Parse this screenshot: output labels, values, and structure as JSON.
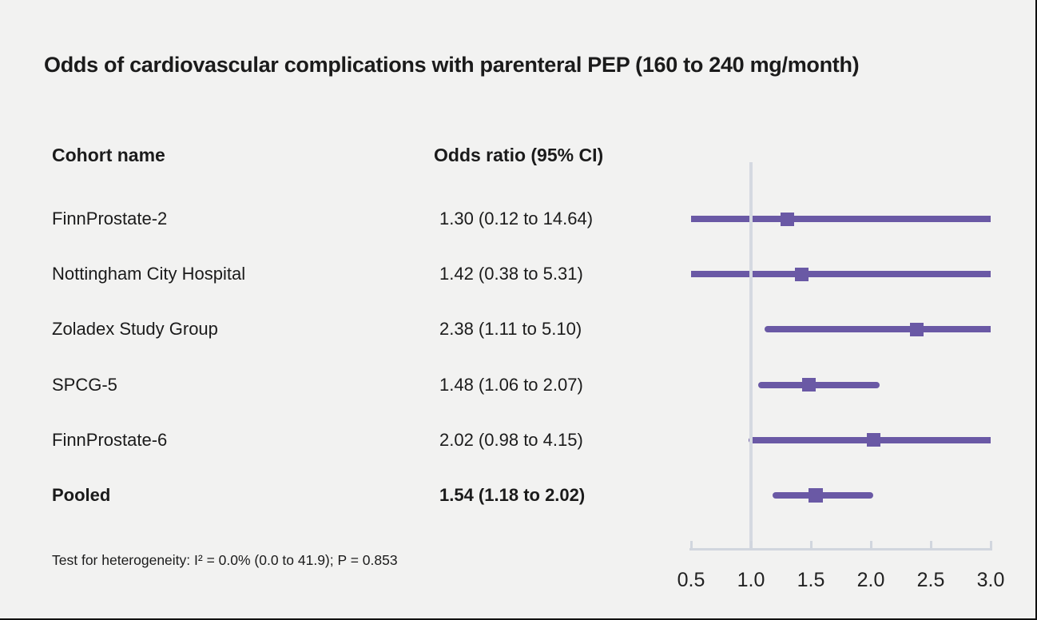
{
  "title": "Odds of cardiovascular complications with parenteral PEP (160 to 240 mg/month)",
  "table": {
    "cohort_header": "Cohort name",
    "or_header": "Odds ratio (95% CI)"
  },
  "footnote": "Test for heterogeneity: I² = 0.0% (0.0 to 41.9); P = 0.853",
  "chart_data": {
    "type": "forest",
    "title": "Odds of cardiovascular complications with parenteral PEP (160 to 240 mg/month)",
    "xlim": [
      0.5,
      3.0
    ],
    "x_ticks": [
      "0.5",
      "1.0",
      "1.5",
      "2.0",
      "2.5",
      "3.0"
    ],
    "x_tick_values": [
      0.5,
      1.0,
      1.5,
      2.0,
      2.5,
      3.0
    ],
    "reference_line": 1.0,
    "grid": false,
    "series": [
      {
        "name": "FinnProstate-2",
        "or_text": "1.30 (0.12 to 14.64)",
        "estimate": 1.3,
        "ci_low": 0.12,
        "ci_high": 14.64,
        "pooled": false
      },
      {
        "name": "Nottingham City Hospital",
        "or_text": "1.42 (0.38 to 5.31)",
        "estimate": 1.42,
        "ci_low": 0.38,
        "ci_high": 5.31,
        "pooled": false
      },
      {
        "name": "Zoladex Study Group",
        "or_text": "2.38 (1.11 to 5.10)",
        "estimate": 2.38,
        "ci_low": 1.11,
        "ci_high": 5.1,
        "pooled": false
      },
      {
        "name": "SPCG-5",
        "or_text": "1.48 (1.06 to 2.07)",
        "estimate": 1.48,
        "ci_low": 1.06,
        "ci_high": 2.07,
        "pooled": false
      },
      {
        "name": "FinnProstate-6",
        "or_text": "2.02 (0.98 to 4.15)",
        "estimate": 2.02,
        "ci_low": 0.98,
        "ci_high": 4.15,
        "pooled": false
      },
      {
        "name": "Pooled",
        "or_text": "1.54 (1.18 to 2.02)",
        "estimate": 1.54,
        "ci_low": 1.18,
        "ci_high": 2.02,
        "pooled": true
      }
    ],
    "colors": {
      "marker": "#6a59a5",
      "reference_line": "#d5d9e1",
      "axis": "#d1d6de",
      "text": "#1b1b1b",
      "background": "#f2f2f1"
    }
  }
}
